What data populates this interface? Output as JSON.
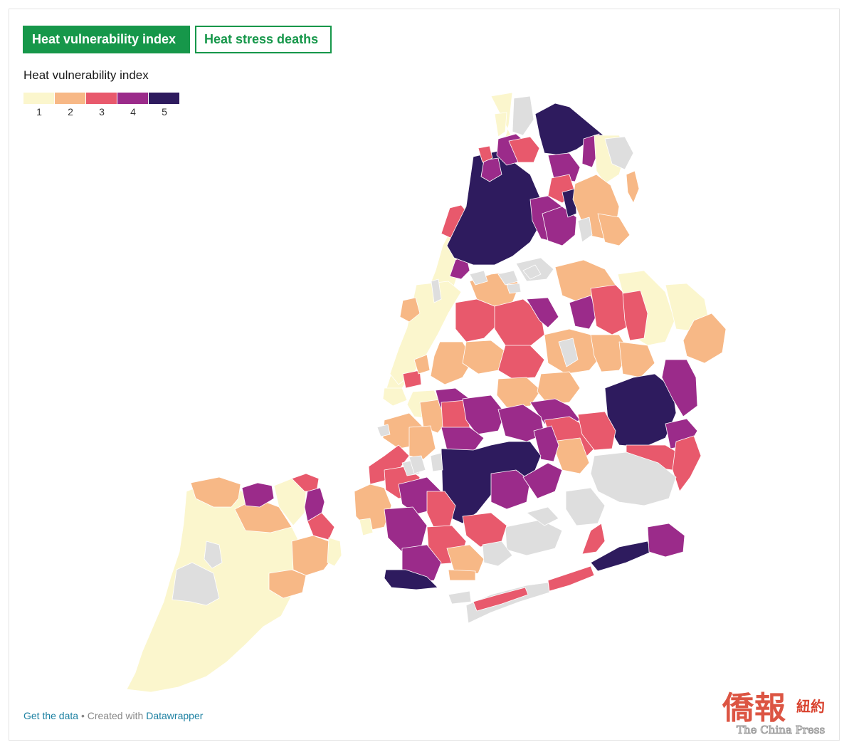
{
  "tabs": [
    {
      "label": "Heat vulnerability index",
      "active": true
    },
    {
      "label": "Heat stress deaths",
      "active": false
    }
  ],
  "legend": {
    "title": "Heat vulnerability index",
    "items": [
      {
        "label": "1",
        "color": "#fbf6cd"
      },
      {
        "label": "2",
        "color": "#f7b886"
      },
      {
        "label": "3",
        "color": "#e8596c"
      },
      {
        "label": "4",
        "color": "#9b2b8a"
      },
      {
        "label": "5",
        "color": "#2e1b5e"
      }
    ]
  },
  "map": {
    "no_data_color": "#dedede",
    "background": "#ffffff"
  },
  "footer": {
    "data_link": "Get the data",
    "separator": " • Created with ",
    "tool_link": "Datawrapper"
  },
  "watermark": {
    "chinese": "僑報",
    "chinese_small": "紐約",
    "english": "The China Press"
  }
}
